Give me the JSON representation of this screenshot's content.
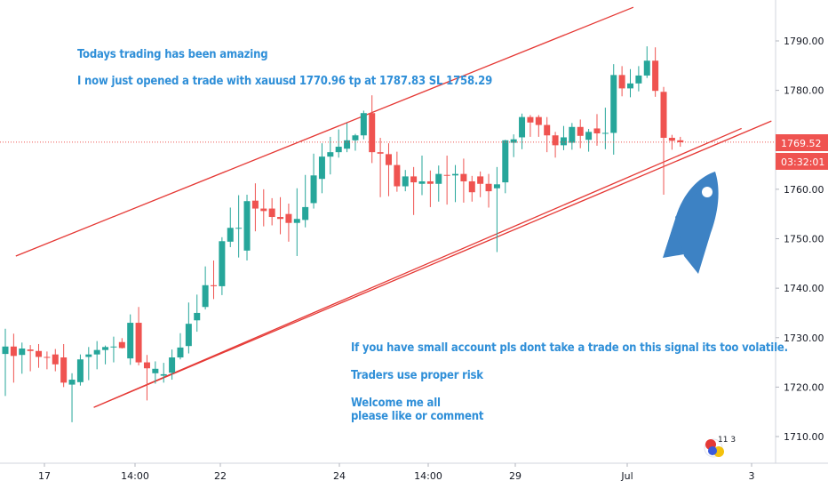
{
  "chart_data": {
    "type": "candlestick",
    "symbol": "XAUUSD",
    "ylim": [
      1704,
      1798
    ],
    "y_ticks": [
      "1790.00",
      "1780.00",
      "1770.00",
      "1760.00",
      "1750.00",
      "1740.00",
      "1730.00",
      "1720.00",
      "1710.00"
    ],
    "x_ticks": [
      "17",
      "14:00",
      "22",
      "24",
      "14:00",
      "29",
      "Jul",
      "3"
    ],
    "current_price": "1769.52",
    "countdown": "03:32:01",
    "candles": [
      {
        "o": 1726.7,
        "h": 1731.8,
        "l": 1718.2,
        "c": 1728.2
      },
      {
        "o": 1728.2,
        "h": 1730.8,
        "l": 1720.9,
        "c": 1726.3
      },
      {
        "o": 1726.5,
        "h": 1729.0,
        "l": 1722.7,
        "c": 1727.8
      },
      {
        "o": 1727.6,
        "h": 1728.5,
        "l": 1723.2,
        "c": 1727.3
      },
      {
        "o": 1727.3,
        "h": 1728.7,
        "l": 1723.9,
        "c": 1726.1
      },
      {
        "o": 1726.1,
        "h": 1727.2,
        "l": 1723.6,
        "c": 1726.0
      },
      {
        "o": 1726.6,
        "h": 1727.7,
        "l": 1723.2,
        "c": 1724.6
      },
      {
        "o": 1726.0,
        "h": 1728.7,
        "l": 1720.0,
        "c": 1720.9
      },
      {
        "o": 1720.5,
        "h": 1722.8,
        "l": 1712.9,
        "c": 1721.5
      },
      {
        "o": 1721.0,
        "h": 1726.6,
        "l": 1720.3,
        "c": 1725.6
      },
      {
        "o": 1726.1,
        "h": 1728.1,
        "l": 1721.4,
        "c": 1726.6
      },
      {
        "o": 1726.6,
        "h": 1729.3,
        "l": 1723.6,
        "c": 1727.5
      },
      {
        "o": 1727.5,
        "h": 1728.4,
        "l": 1724.6,
        "c": 1728.1
      },
      {
        "o": 1728.1,
        "h": 1730.2,
        "l": 1725.0,
        "c": 1728.2
      },
      {
        "o": 1729.1,
        "h": 1729.9,
        "l": 1727.8,
        "c": 1727.9
      },
      {
        "o": 1725.8,
        "h": 1734.7,
        "l": 1724.5,
        "c": 1733.0
      },
      {
        "o": 1733.0,
        "h": 1736.2,
        "l": 1724.4,
        "c": 1725.0
      },
      {
        "o": 1725.0,
        "h": 1726.5,
        "l": 1717.3,
        "c": 1723.8
      },
      {
        "o": 1722.8,
        "h": 1725.2,
        "l": 1720.7,
        "c": 1723.7
      },
      {
        "o": 1722.3,
        "h": 1724.9,
        "l": 1720.9,
        "c": 1722.6
      },
      {
        "o": 1722.9,
        "h": 1727.6,
        "l": 1721.5,
        "c": 1726.0
      },
      {
        "o": 1726.0,
        "h": 1730.9,
        "l": 1725.6,
        "c": 1728.0
      },
      {
        "o": 1728.3,
        "h": 1737.1,
        "l": 1726.8,
        "c": 1732.8
      },
      {
        "o": 1733.5,
        "h": 1738.7,
        "l": 1731.2,
        "c": 1735.0
      },
      {
        "o": 1736.2,
        "h": 1744.4,
        "l": 1735.7,
        "c": 1740.6
      },
      {
        "o": 1740.6,
        "h": 1745.6,
        "l": 1737.8,
        "c": 1740.4
      },
      {
        "o": 1740.4,
        "h": 1750.3,
        "l": 1738.6,
        "c": 1749.5
      },
      {
        "o": 1749.4,
        "h": 1756.3,
        "l": 1748.3,
        "c": 1752.2
      },
      {
        "o": 1752.2,
        "h": 1758.8,
        "l": 1746.2,
        "c": 1752.2
      },
      {
        "o": 1747.6,
        "h": 1758.9,
        "l": 1745.6,
        "c": 1757.6
      },
      {
        "o": 1757.7,
        "h": 1761.2,
        "l": 1751.5,
        "c": 1756.1
      },
      {
        "o": 1756.1,
        "h": 1760.0,
        "l": 1752.5,
        "c": 1755.6
      },
      {
        "o": 1756.1,
        "h": 1758.2,
        "l": 1752.7,
        "c": 1754.4
      },
      {
        "o": 1754.4,
        "h": 1758.4,
        "l": 1750.9,
        "c": 1754.0
      },
      {
        "o": 1755.0,
        "h": 1757.1,
        "l": 1749.4,
        "c": 1753.2
      },
      {
        "o": 1753.2,
        "h": 1760.2,
        "l": 1746.5,
        "c": 1754.0
      },
      {
        "o": 1753.8,
        "h": 1762.9,
        "l": 1752.3,
        "c": 1756.4
      },
      {
        "o": 1757.2,
        "h": 1767.2,
        "l": 1756.1,
        "c": 1762.8
      },
      {
        "o": 1762.1,
        "h": 1769.3,
        "l": 1759.2,
        "c": 1766.6
      },
      {
        "o": 1766.6,
        "h": 1770.6,
        "l": 1763.0,
        "c": 1767.5
      },
      {
        "o": 1767.5,
        "h": 1772.1,
        "l": 1766.4,
        "c": 1768.6
      },
      {
        "o": 1768.2,
        "h": 1773.4,
        "l": 1767.5,
        "c": 1769.9
      },
      {
        "o": 1769.9,
        "h": 1771.2,
        "l": 1767.8,
        "c": 1770.9
      },
      {
        "o": 1770.9,
        "h": 1775.9,
        "l": 1770.1,
        "c": 1775.4
      },
      {
        "o": 1775.4,
        "h": 1779.0,
        "l": 1765.3,
        "c": 1767.5
      },
      {
        "o": 1767.5,
        "h": 1770.4,
        "l": 1758.4,
        "c": 1767.2
      },
      {
        "o": 1767.1,
        "h": 1769.3,
        "l": 1758.6,
        "c": 1764.9
      },
      {
        "o": 1764.9,
        "h": 1767.6,
        "l": 1759.5,
        "c": 1760.6
      },
      {
        "o": 1760.6,
        "h": 1763.9,
        "l": 1759.6,
        "c": 1762.6
      },
      {
        "o": 1762.6,
        "h": 1764.5,
        "l": 1754.8,
        "c": 1761.4
      },
      {
        "o": 1761.1,
        "h": 1766.8,
        "l": 1758.8,
        "c": 1761.6
      },
      {
        "o": 1761.6,
        "h": 1763.8,
        "l": 1756.4,
        "c": 1761.1
      },
      {
        "o": 1761.1,
        "h": 1764.8,
        "l": 1757.5,
        "c": 1763.1
      },
      {
        "o": 1762.9,
        "h": 1766.8,
        "l": 1756.9,
        "c": 1762.8
      },
      {
        "o": 1762.8,
        "h": 1764.9,
        "l": 1757.4,
        "c": 1763.1
      },
      {
        "o": 1763.1,
        "h": 1766.2,
        "l": 1757.3,
        "c": 1761.6
      },
      {
        "o": 1761.6,
        "h": 1762.7,
        "l": 1757.5,
        "c": 1759.4
      },
      {
        "o": 1762.6,
        "h": 1763.6,
        "l": 1758.4,
        "c": 1761.1
      },
      {
        "o": 1761.1,
        "h": 1763.1,
        "l": 1756.3,
        "c": 1759.6
      },
      {
        "o": 1760.2,
        "h": 1764.5,
        "l": 1747.3,
        "c": 1761.0
      },
      {
        "o": 1761.4,
        "h": 1770.0,
        "l": 1759.2,
        "c": 1769.9
      },
      {
        "o": 1769.4,
        "h": 1771.1,
        "l": 1766.5,
        "c": 1770.1
      },
      {
        "o": 1770.5,
        "h": 1775.3,
        "l": 1768.1,
        "c": 1774.6
      },
      {
        "o": 1774.6,
        "h": 1775.0,
        "l": 1770.6,
        "c": 1773.5
      },
      {
        "o": 1774.6,
        "h": 1775.0,
        "l": 1770.6,
        "c": 1773.0
      },
      {
        "o": 1773.0,
        "h": 1774.6,
        "l": 1767.5,
        "c": 1770.9
      },
      {
        "o": 1770.9,
        "h": 1771.6,
        "l": 1766.4,
        "c": 1768.9
      },
      {
        "o": 1768.9,
        "h": 1772.8,
        "l": 1767.9,
        "c": 1770.5
      },
      {
        "o": 1769.4,
        "h": 1773.4,
        "l": 1768.0,
        "c": 1772.6
      },
      {
        "o": 1772.6,
        "h": 1774.1,
        "l": 1768.3,
        "c": 1770.8
      },
      {
        "o": 1770.0,
        "h": 1772.2,
        "l": 1767.6,
        "c": 1771.6
      },
      {
        "o": 1772.3,
        "h": 1775.2,
        "l": 1768.8,
        "c": 1771.3
      },
      {
        "o": 1771.3,
        "h": 1776.5,
        "l": 1768.1,
        "c": 1771.4
      },
      {
        "o": 1771.4,
        "h": 1785.3,
        "l": 1767.0,
        "c": 1783.1
      },
      {
        "o": 1783.1,
        "h": 1784.9,
        "l": 1778.8,
        "c": 1780.4
      },
      {
        "o": 1780.4,
        "h": 1784.3,
        "l": 1778.6,
        "c": 1781.4
      },
      {
        "o": 1781.4,
        "h": 1784.9,
        "l": 1779.8,
        "c": 1783.0
      },
      {
        "o": 1783.0,
        "h": 1788.9,
        "l": 1782.5,
        "c": 1786.0
      },
      {
        "o": 1786.0,
        "h": 1788.7,
        "l": 1778.7,
        "c": 1779.9
      },
      {
        "o": 1779.7,
        "h": 1780.7,
        "l": 1758.9,
        "c": 1770.4
      },
      {
        "o": 1770.4,
        "h": 1771.0,
        "l": 1768.0,
        "c": 1769.8
      },
      {
        "o": 1769.9,
        "h": 1770.6,
        "l": 1768.6,
        "c": 1769.5
      }
    ],
    "trendlines": [
      {
        "from": {
          "x": 17.8,
          "y": 1746.5
        },
        "to": {
          "x": 712.9,
          "y": 1796.8
        }
      },
      {
        "from": {
          "x": 105.6,
          "y": 1715.9
        },
        "to": {
          "x": 834.7,
          "y": 1772.3
        }
      },
      {
        "from": {
          "x": 105.6,
          "y": 1715.9
        },
        "to": {
          "x": 868.3,
          "y": 1773.8
        }
      }
    ]
  },
  "annotations": {
    "line1": "Todays trading has been amazing",
    "line2": "I now just opened a trade with xauusd 1770.96 tp at 1787.83 SL 1758.29",
    "line3": "If you have small account pls dont take a trade on this signal its too volatile.",
    "line4": "Traders use proper risk",
    "line5": "Welcome me all",
    "line6": "please like or comment"
  },
  "badge": {
    "counts": "11  3"
  },
  "colors": {
    "up": "#26a69a",
    "down": "#ef5350",
    "trendline": "#e53935",
    "price_tag": "#ef5350",
    "text": "#2f8fd8",
    "rocket": "#3d82c4"
  },
  "icons": {
    "rocket": "rocket-icon",
    "badge": "flag-badge-icon"
  }
}
